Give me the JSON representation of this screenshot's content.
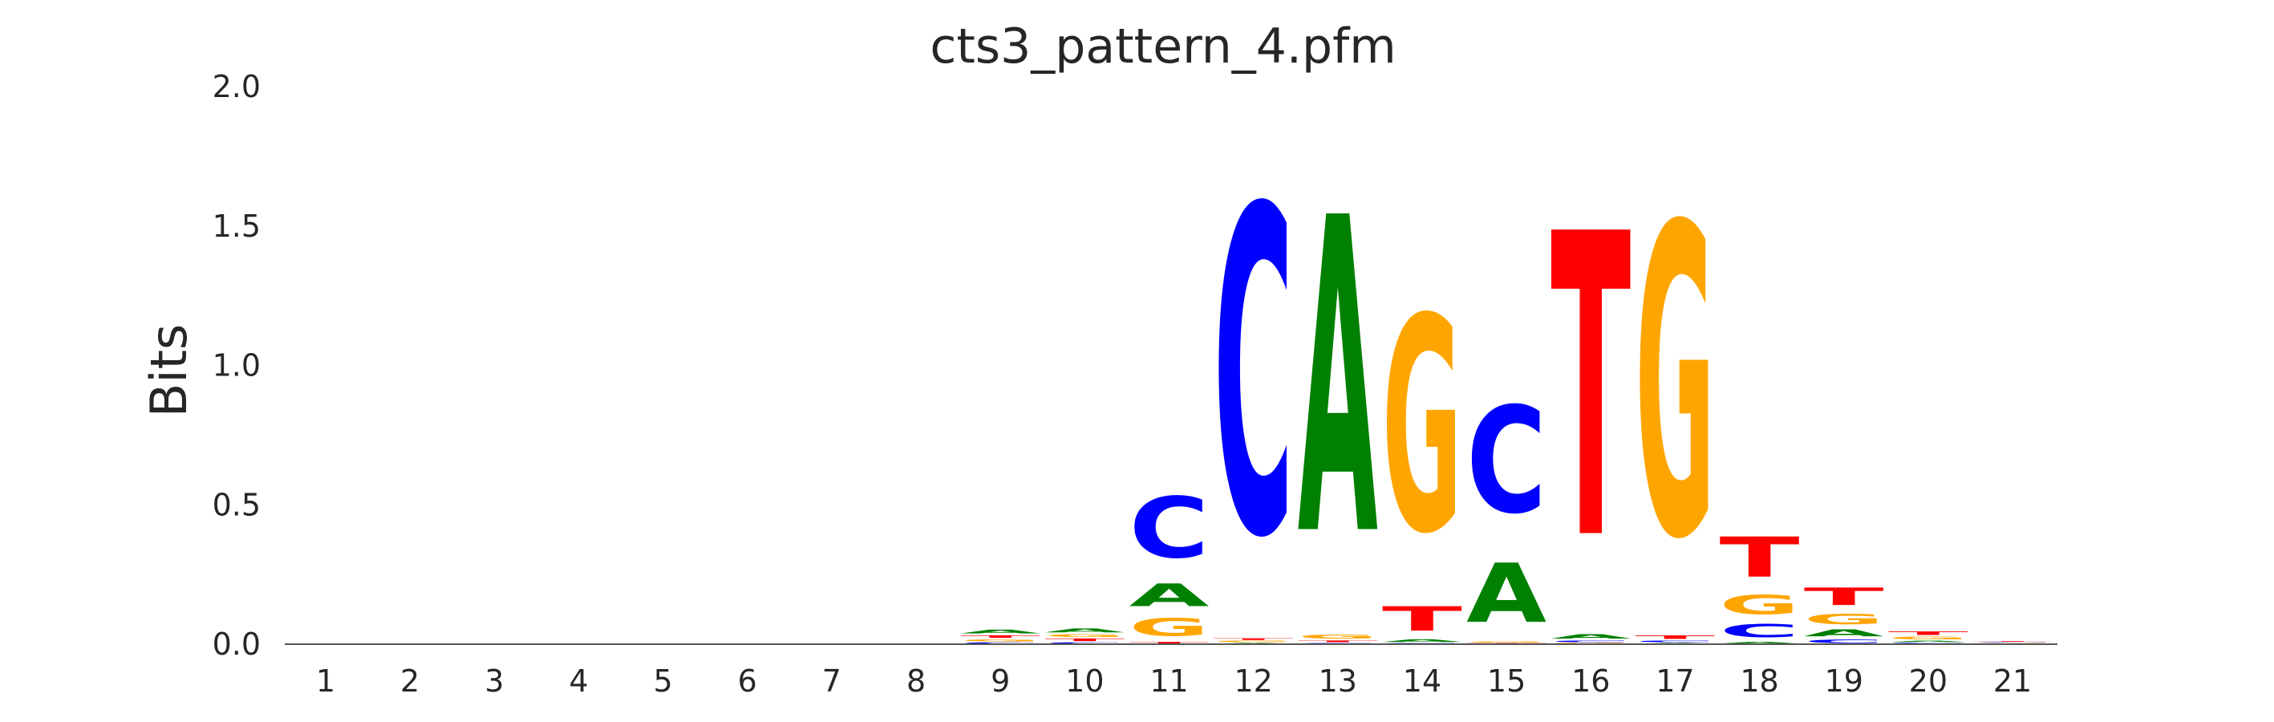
{
  "chart_data": {
    "type": "sequence-logo",
    "title": "cts3_pattern_4.pfm",
    "xlabel": "",
    "ylabel": "Bits",
    "ylim": [
      0,
      2
    ],
    "yticks": [
      0,
      0.5,
      1,
      1.5,
      2
    ],
    "ytick_labels": [
      "0.0",
      "0.5",
      "1.0",
      "1.5",
      "2.0"
    ],
    "categories": [
      "1",
      "2",
      "3",
      "4",
      "5",
      "6",
      "7",
      "8",
      "9",
      "10",
      "11",
      "12",
      "13",
      "14",
      "15",
      "16",
      "17",
      "18",
      "19",
      "20",
      "21"
    ],
    "grid": false,
    "colors": {
      "A": "#008000",
      "C": "#0000ff",
      "G": "#ffa500",
      "T": "#ff0000"
    },
    "positions": [
      {
        "pos": "1",
        "stack": []
      },
      {
        "pos": "2",
        "stack": []
      },
      {
        "pos": "3",
        "stack": []
      },
      {
        "pos": "4",
        "stack": []
      },
      {
        "pos": "5",
        "stack": []
      },
      {
        "pos": "6",
        "stack": []
      },
      {
        "pos": "7",
        "stack": []
      },
      {
        "pos": "8",
        "stack": []
      },
      {
        "pos": "9",
        "stack": [
          {
            "base": "C",
            "bits": 0.008
          },
          {
            "base": "G",
            "bits": 0.012
          },
          {
            "base": "T",
            "bits": 0.014
          },
          {
            "base": "A",
            "bits": 0.022
          }
        ]
      },
      {
        "pos": "10",
        "stack": [
          {
            "base": "C",
            "bits": 0.008
          },
          {
            "base": "T",
            "bits": 0.015
          },
          {
            "base": "G",
            "bits": 0.015
          },
          {
            "base": "A",
            "bits": 0.022
          }
        ]
      },
      {
        "pos": "11",
        "stack": [
          {
            "base": "T",
            "bits": 0.01
          },
          {
            "base": "G",
            "bits": 0.1
          },
          {
            "base": "A",
            "bits": 0.13
          },
          {
            "base": "C",
            "bits": 0.35
          }
        ]
      },
      {
        "pos": "12",
        "stack": [
          {
            "base": "A",
            "bits": 0.005
          },
          {
            "base": "G",
            "bits": 0.008
          },
          {
            "base": "T",
            "bits": 0.01
          },
          {
            "base": "C",
            "bits": 1.87
          }
        ]
      },
      {
        "pos": "13",
        "stack": [
          {
            "base": "C",
            "bits": 0.005
          },
          {
            "base": "T",
            "bits": 0.01
          },
          {
            "base": "G",
            "bits": 0.025
          },
          {
            "base": "A",
            "bits": 1.81
          }
        ]
      },
      {
        "pos": "14",
        "stack": [
          {
            "base": "C",
            "bits": 0.005
          },
          {
            "base": "A",
            "bits": 0.015
          },
          {
            "base": "T",
            "bits": 0.14
          },
          {
            "base": "G",
            "bits": 1.23
          }
        ]
      },
      {
        "pos": "15",
        "stack": [
          {
            "base": "T",
            "bits": 0.005
          },
          {
            "base": "G",
            "bits": 0.005
          },
          {
            "base": "A",
            "bits": 0.34
          },
          {
            "base": "C",
            "bits": 0.61
          }
        ]
      },
      {
        "pos": "16",
        "stack": [
          {
            "base": "G",
            "bits": 0.005
          },
          {
            "base": "C",
            "bits": 0.01
          },
          {
            "base": "A",
            "bits": 0.025
          },
          {
            "base": "T",
            "bits": 1.74
          }
        ]
      },
      {
        "pos": "17",
        "stack": [
          {
            "base": "A",
            "bits": 0.005
          },
          {
            "base": "C",
            "bits": 0.01
          },
          {
            "base": "T",
            "bits": 0.02
          },
          {
            "base": "G",
            "bits": 1.78
          }
        ]
      },
      {
        "pos": "18",
        "stack": [
          {
            "base": "A",
            "bits": 0.01
          },
          {
            "base": "C",
            "bits": 0.075
          },
          {
            "base": "G",
            "bits": 0.11
          },
          {
            "base": "T",
            "bits": 0.23
          }
        ]
      },
      {
        "pos": "19",
        "stack": [
          {
            "base": "C",
            "bits": 0.02
          },
          {
            "base": "A",
            "bits": 0.04
          },
          {
            "base": "G",
            "bits": 0.06
          },
          {
            "base": "T",
            "bits": 0.1
          }
        ]
      },
      {
        "pos": "20",
        "stack": [
          {
            "base": "C",
            "bits": 0.006
          },
          {
            "base": "A",
            "bits": 0.008
          },
          {
            "base": "G",
            "bits": 0.015
          },
          {
            "base": "T",
            "bits": 0.02
          }
        ]
      },
      {
        "pos": "21",
        "stack": [
          {
            "base": "A",
            "bits": 0.002
          },
          {
            "base": "G",
            "bits": 0.003
          },
          {
            "base": "C",
            "bits": 0.003
          },
          {
            "base": "T",
            "bits": 0.004
          }
        ]
      }
    ]
  }
}
